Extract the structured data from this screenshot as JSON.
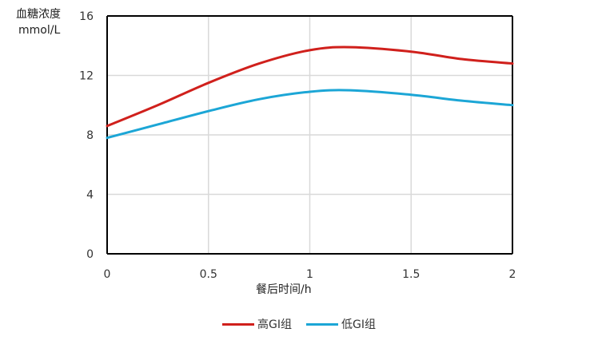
{
  "chart_data": {
    "type": "line",
    "ylabel_line1": "血糖浓度",
    "ylabel_line2": "mmol/L",
    "xlabel": "餐后时间/h",
    "xlim": [
      0,
      2
    ],
    "ylim": [
      0,
      16
    ],
    "xticks": [
      "0",
      "0.5",
      "1",
      "1.5",
      "2"
    ],
    "yticks": [
      "0",
      "4",
      "8",
      "12",
      "16"
    ],
    "grid": true,
    "legend_position": "bottom",
    "series": [
      {
        "name": "高GI组",
        "color": "#d0201c",
        "x": [
          0,
          0.25,
          0.5,
          0.75,
          1.0,
          1.2,
          1.5,
          1.75,
          2.0
        ],
        "y": [
          8.6,
          10.0,
          11.5,
          12.8,
          13.7,
          13.9,
          13.6,
          13.1,
          12.8
        ]
      },
      {
        "name": "低GI组",
        "color": "#1ca6d6",
        "x": [
          0,
          0.25,
          0.5,
          0.75,
          1.0,
          1.2,
          1.5,
          1.75,
          2.0
        ],
        "y": [
          7.8,
          8.7,
          9.6,
          10.4,
          10.9,
          11.0,
          10.7,
          10.3,
          10.0
        ]
      }
    ]
  }
}
